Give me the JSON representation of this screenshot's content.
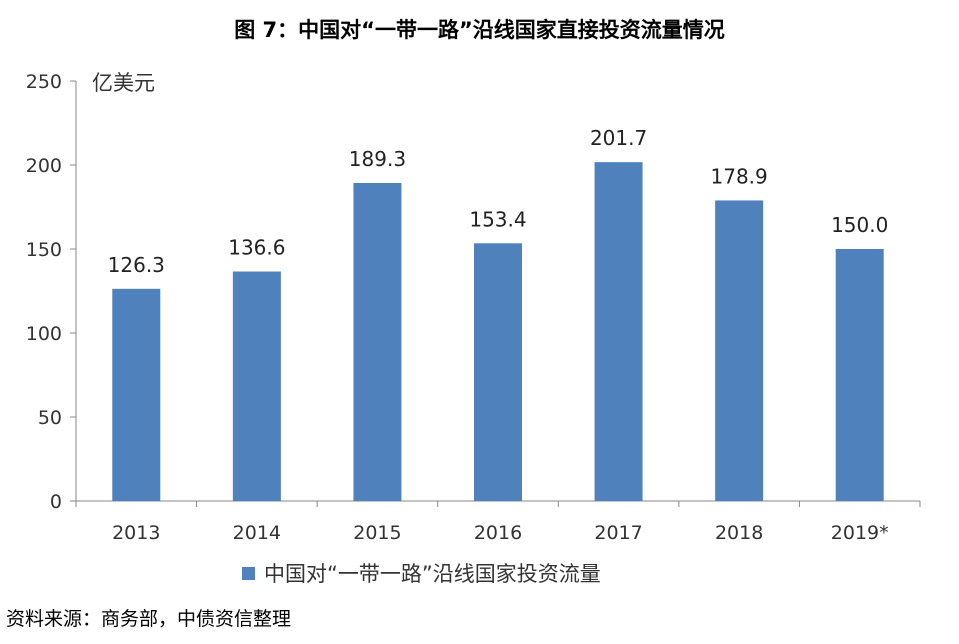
{
  "title": "图 7：中国对“一带一路”沿线国家直接投资流量情况",
  "source": "资料来源：商务部，中债资信整理",
  "colors": {
    "bar": "#4f81bd",
    "axis": "#888888"
  },
  "chart_data": {
    "type": "bar",
    "categories": [
      "2013",
      "2014",
      "2015",
      "2016",
      "2017",
      "2018",
      "2019*"
    ],
    "series": [
      {
        "name": "中国对“一带一路”沿线国家投资流量",
        "values": [
          126.3,
          136.6,
          189.3,
          153.4,
          201.7,
          178.9,
          150.0
        ],
        "labels": [
          "126.3",
          "136.6",
          "189.3",
          "153.4",
          "201.7",
          "178.9",
          "150.0"
        ]
      }
    ],
    "ylabel": "亿美元",
    "ylim": [
      0,
      250
    ],
    "yticks": [
      0,
      50,
      100,
      150,
      200,
      250
    ],
    "grid": false,
    "legend": "bottom"
  }
}
